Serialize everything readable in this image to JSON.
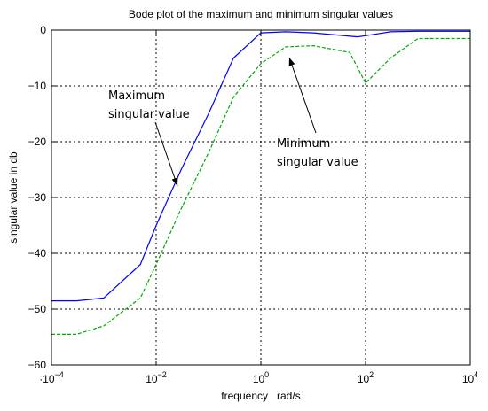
{
  "chart_data": {
    "type": "line",
    "title": "Bode plot of the maximum and minimum singular values",
    "xlabel": "frequency   rad/s",
    "ylabel": "singular value in db",
    "x_scale": "log",
    "xlim": [
      0.0001,
      10000
    ],
    "ylim": [
      -60,
      0
    ],
    "grid": true,
    "x_ticks": [
      {
        "value": 0.0001,
        "base": "10",
        "exp": "−4",
        "prefix": "·"
      },
      {
        "value": 0.01,
        "base": "10",
        "exp": "−2",
        "prefix": ""
      },
      {
        "value": 1,
        "base": "10",
        "exp": "0",
        "prefix": ""
      },
      {
        "value": 100,
        "base": "10",
        "exp": "2",
        "prefix": ""
      },
      {
        "value": 10000,
        "base": "10",
        "exp": "4",
        "prefix": ""
      }
    ],
    "y_ticks": [
      {
        "value": 0,
        "label": "0"
      },
      {
        "value": -10,
        "label": "−10"
      },
      {
        "value": -20,
        "label": "−20"
      },
      {
        "value": -30,
        "label": "−30"
      },
      {
        "value": -40,
        "label": "−40"
      },
      {
        "value": -50,
        "label": "−50"
      },
      {
        "value": -60,
        "label": "−60"
      }
    ],
    "series": [
      {
        "color": "#0000ff",
        "style": "solid",
        "x": [
          0.0001,
          0.0003,
          0.001,
          0.005,
          0.01,
          0.03,
          0.1,
          0.3,
          1,
          3,
          10,
          70,
          100,
          300,
          1000,
          10000
        ],
        "y": [
          -48.5,
          -48.5,
          -48,
          -42,
          -35,
          -25,
          -15,
          -5,
          -0.5,
          -0.3,
          -0.5,
          -1.2,
          -1,
          -0.3,
          -0.2,
          -0.2
        ]
      },
      {
        "color": "#00aa00",
        "style": "dashed",
        "x": [
          0.0001,
          0.0003,
          0.001,
          0.005,
          0.01,
          0.03,
          0.1,
          0.3,
          1,
          3,
          10,
          50,
          100,
          300,
          1000,
          10000
        ],
        "y": [
          -54.5,
          -54.5,
          -53,
          -48,
          -42,
          -32,
          -22,
          -12,
          -6,
          -3,
          -2.8,
          -4,
          -9.5,
          -5,
          -1.5,
          -1.5
        ]
      }
    ],
    "annotations": [
      {
        "lines": [
          "Maximum",
          "singular value"
        ]
      },
      {
        "lines": [
          "Minimum",
          "singular value"
        ]
      }
    ]
  }
}
